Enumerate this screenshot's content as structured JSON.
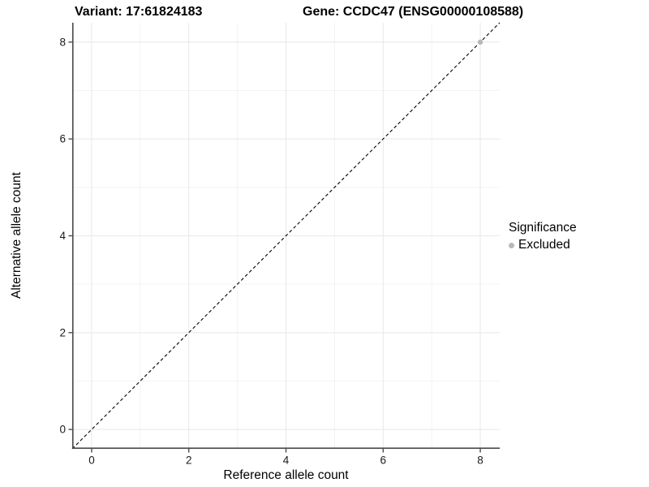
{
  "chart_data": {
    "type": "scatter",
    "title_left": "Variant: 17:61824183",
    "title_right": "Gene: CCDC47 (ENSG00000108588)",
    "xlabel": "Reference allele count",
    "ylabel": "Alternative allele count",
    "xlim": [
      -0.4,
      8.4
    ],
    "ylim": [
      -0.4,
      8.4
    ],
    "x_major_ticks": [
      0,
      2,
      4,
      6,
      8
    ],
    "x_minor_ticks": [
      1,
      3,
      5,
      7
    ],
    "y_major_ticks": [
      0,
      2,
      4,
      6,
      8
    ],
    "y_minor_ticks": [
      1,
      3,
      5,
      7
    ],
    "x_tick_labels": [
      "0",
      "2",
      "4",
      "6",
      "8"
    ],
    "y_tick_labels": [
      "0",
      "2",
      "4",
      "6",
      "8"
    ],
    "grid": true,
    "points": [
      {
        "x": 8,
        "y": 8,
        "series": "Excluded"
      }
    ],
    "reference_line": {
      "kind": "abline",
      "slope": 1,
      "intercept": 0,
      "style": "dashed",
      "color": "#000000"
    },
    "legend": {
      "title": "Significance",
      "position": "right",
      "items": [
        {
          "label": "Excluded",
          "color": "#b8b8b8"
        }
      ]
    },
    "colors": {
      "background": "#ffffff",
      "grid_major": "#e8e8e8",
      "grid_minor": "#f3f3f3",
      "axis_line": "#4a4a4a",
      "tick_text": "#1a1a1a",
      "title_text": "#000000"
    }
  }
}
